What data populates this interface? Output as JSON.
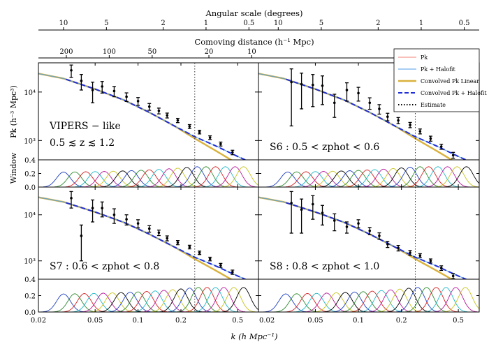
{
  "chart_data": {
    "type": "line",
    "top_axis_angular": {
      "label": "Angular scale (degrees)",
      "ticks": [
        {
          "label": "10",
          "k": 0.03
        },
        {
          "label": "5",
          "k": 0.06
        },
        {
          "label": "2",
          "k": 0.15
        },
        {
          "label": "1",
          "k": 0.3
        },
        {
          "label": "0.5",
          "k": 0.6
        },
        {
          "label": "10",
          "k": 0.0275
        },
        {
          "label": "5",
          "k": 0.055
        },
        {
          "label": "2",
          "k": 0.1375
        },
        {
          "label": "1",
          "k": 0.275
        },
        {
          "label": "0.5",
          "k": 0.55
        }
      ]
    },
    "top_axis_comoving": {
      "label": "Comoving distance (h⁻¹ Mpc)",
      "ticks": [
        {
          "label": "200",
          "k": 0.0314
        },
        {
          "label": "100",
          "k": 0.0628
        },
        {
          "label": "50",
          "k": 0.1257
        },
        {
          "label": "20",
          "k": 0.3142
        },
        {
          "label": "10",
          "k": 0.6283
        }
      ]
    },
    "xlabel": "k (h Mpc⁻¹)",
    "xticks": [
      {
        "label": "0.02",
        "k": 0.02
      },
      {
        "label": "0.05",
        "k": 0.05
      },
      {
        "label": "0.1",
        "k": 0.1
      },
      {
        "label": "0.2",
        "k": 0.2
      },
      {
        "label": "0.5",
        "k": 0.5
      }
    ],
    "xlim": [
      0.02,
      0.7
    ],
    "pk_ylabel": "Pk (h⁻³ Mpc³)",
    "window_ylabel": "Window",
    "pk_ylim": [
      400,
      40000
    ],
    "pk_yticks": [
      {
        "label": "10⁴",
        "v": 10000
      },
      {
        "label": "10³",
        "v": 1000
      },
      {
        "label": "0.4",
        "v": 400
      }
    ],
    "window_ylim": [
      0,
      0.4
    ],
    "window_yticks": [
      {
        "label": "0.2",
        "v": 0.2
      },
      {
        "label": "0.0",
        "v": 0.0
      }
    ],
    "estimate_k": 0.25,
    "legend": [
      "Pk",
      "Pk + Halofit",
      "Convolved Pk Linear",
      "Convolved Pk + Halofit",
      "Estimate"
    ],
    "colors": {
      "pk": "#f08070",
      "halofit": "#4f9ee6",
      "conv_linear": "#d9b13c",
      "conv_halofit": "#1f2fd8",
      "data": "#000000",
      "window": [
        "#1f3fbf",
        "#2e8b2e",
        "#d62020",
        "#20b8c8",
        "#b8199a",
        "#c8c320",
        "#000000"
      ]
    },
    "model": {
      "k": [
        0.02,
        0.03,
        0.05,
        0.08,
        0.12,
        0.18,
        0.25,
        0.35,
        0.5,
        0.7
      ],
      "halofit": [
        24000,
        19000,
        11500,
        6800,
        3800,
        2000,
        1200,
        780,
        470,
        300
      ],
      "conv_linear": [
        24000,
        19000,
        11500,
        6800,
        3800,
        2000,
        1100,
        620,
        330,
        170
      ]
    },
    "panels": [
      {
        "label": "VIPERS − like",
        "label2": "0.5 ≲ z ≲ 1.2",
        "k": [
          0.034,
          0.04,
          0.048,
          0.056,
          0.068,
          0.083,
          0.1,
          0.12,
          0.14,
          0.16,
          0.19,
          0.23,
          0.27,
          0.32,
          0.38,
          0.46
        ],
        "pk": [
          28000,
          17000,
          11000,
          13000,
          10500,
          8000,
          6500,
          5000,
          4100,
          3300,
          2600,
          1950,
          1500,
          1150,
          850,
          570
        ],
        "err": [
          8000,
          6000,
          5000,
          3500,
          2500,
          1600,
          1200,
          800,
          560,
          380,
          260,
          180,
          130,
          100,
          80,
          60
        ],
        "window_centers": [
          0.03,
          0.036,
          0.043,
          0.05,
          0.058,
          0.067,
          0.078,
          0.09,
          0.105,
          0.12,
          0.14,
          0.165,
          0.19,
          0.22,
          0.26,
          0.3,
          0.35,
          0.41,
          0.48,
          0.55
        ]
      },
      {
        "label": "S6 : 0.5 < zphot < 0.6",
        "k": [
          0.034,
          0.04,
          0.048,
          0.056,
          0.068,
          0.083,
          0.1,
          0.12,
          0.14,
          0.16,
          0.19,
          0.23,
          0.27,
          0.32,
          0.38,
          0.46
        ],
        "pk": [
          16000,
          14500,
          14000,
          13500,
          6000,
          11000,
          9500,
          6000,
          4500,
          3100,
          2600,
          2100,
          1550,
          1100,
          750,
          500
        ],
        "err": [
          14000,
          10000,
          9000,
          8000,
          3000,
          4500,
          3000,
          1600,
          1000,
          550,
          380,
          260,
          180,
          130,
          90,
          70
        ],
        "window_centers": [
          0.032,
          0.037,
          0.043,
          0.05,
          0.057,
          0.066,
          0.076,
          0.087,
          0.1,
          0.115,
          0.13,
          0.15,
          0.175,
          0.2,
          0.23,
          0.27,
          0.31,
          0.36,
          0.42,
          0.49,
          0.57
        ]
      },
      {
        "label": "S7 : 0.6 < zphot < 0.8",
        "k": [
          0.034,
          0.04,
          0.048,
          0.056,
          0.068,
          0.083,
          0.1,
          0.12,
          0.14,
          0.16,
          0.19,
          0.23,
          0.27,
          0.32,
          0.38,
          0.46
        ],
        "pk": [
          23000,
          3500,
          14000,
          14000,
          10000,
          8000,
          6500,
          5000,
          4100,
          3100,
          2500,
          2000,
          1500,
          1100,
          800,
          570
        ],
        "err": [
          9000,
          2500,
          7000,
          5000,
          3500,
          2000,
          1300,
          800,
          560,
          380,
          260,
          180,
          130,
          100,
          80,
          60
        ],
        "window_centers": [
          0.03,
          0.036,
          0.042,
          0.049,
          0.057,
          0.066,
          0.076,
          0.088,
          0.1,
          0.115,
          0.132,
          0.152,
          0.175,
          0.2,
          0.23,
          0.265,
          0.305,
          0.35,
          0.4,
          0.47,
          0.55
        ]
      },
      {
        "label": "S8 : 0.8 < zphot < 1.0",
        "k": [
          0.034,
          0.04,
          0.048,
          0.056,
          0.068,
          0.083,
          0.1,
          0.12,
          0.14,
          0.16,
          0.19,
          0.23,
          0.27,
          0.32,
          0.38,
          0.46
        ],
        "pk": [
          18000,
          13000,
          17000,
          11000,
          7500,
          5500,
          6500,
          4500,
          3500,
          2300,
          1900,
          1500,
          1300,
          1000,
          700,
          470
        ],
        "err": [
          14000,
          9000,
          9000,
          5000,
          3000,
          1500,
          1300,
          800,
          560,
          350,
          260,
          180,
          130,
          100,
          80,
          60
        ],
        "window_centers": [
          0.031,
          0.037,
          0.044,
          0.051,
          0.06,
          0.07,
          0.081,
          0.094,
          0.108,
          0.125,
          0.145,
          0.168,
          0.195,
          0.225,
          0.26,
          0.3,
          0.35,
          0.41,
          0.48,
          0.56
        ]
      }
    ]
  }
}
